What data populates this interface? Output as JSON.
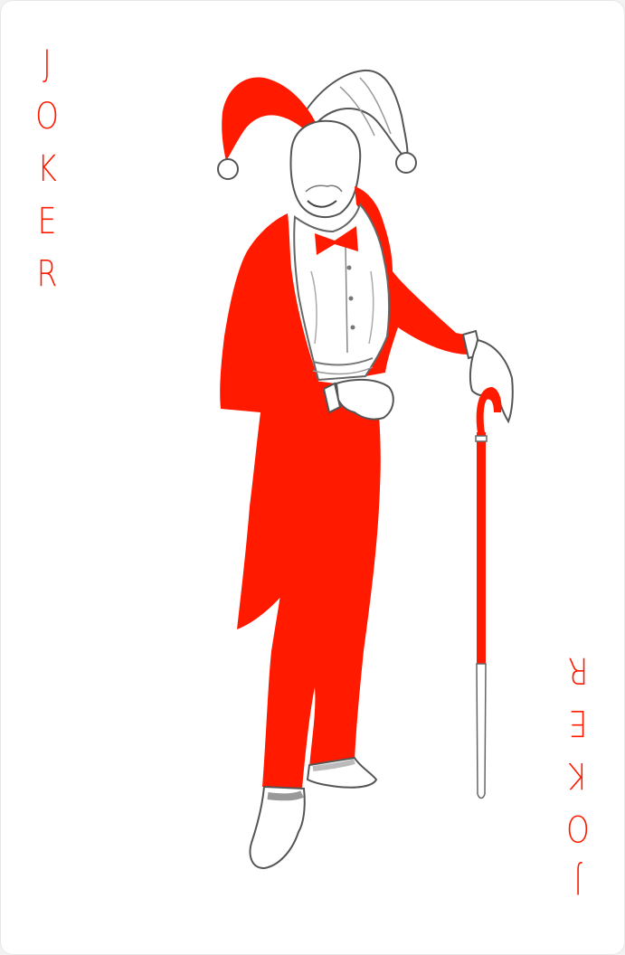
{
  "card": {
    "rank_top": [
      "J",
      "O",
      "K",
      "E",
      "R"
    ],
    "rank_bottom": [
      "J",
      "O",
      "K",
      "E",
      "R"
    ]
  },
  "colors": {
    "red": "#ff1a00",
    "line": "#555555",
    "shade": "#bdbdbd",
    "paper": "#ffffff"
  },
  "icons": {
    "figure": "jester-figure-with-cane"
  }
}
